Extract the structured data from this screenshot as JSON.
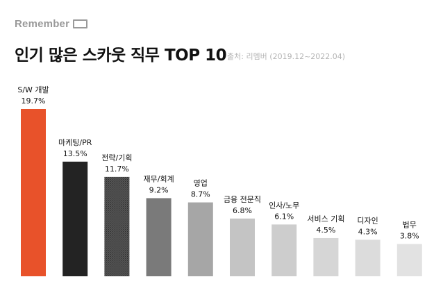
{
  "brand": {
    "name": "Remember"
  },
  "header": {
    "title": "인기 많은 스카웃 직무 TOP 10",
    "source": "출처: 리멤버 (2019.12~2022.04)"
  },
  "chart_data": {
    "type": "bar",
    "title": "인기 많은 스카웃 직무 TOP 10",
    "unit": "%",
    "categories": [
      "S/W 개발",
      "마케팅/PR",
      "전략/기획",
      "재무/회계",
      "영업",
      "금융 전문직",
      "인사/노무",
      "서비스 기획",
      "디자인",
      "법무"
    ],
    "values": [
      19.7,
      13.5,
      11.7,
      9.2,
      8.7,
      6.8,
      6.1,
      4.5,
      4.3,
      3.8
    ],
    "value_labels": [
      "19.7%",
      "13.5%",
      "11.7%",
      "9.2%",
      "8.7%",
      "6.8%",
      "6.1%",
      "4.5%",
      "4.3%",
      "3.8%"
    ],
    "colors": [
      "#e8522a",
      "#232323",
      "#4a4a4a",
      "#7a7a7a",
      "#a6a6a6",
      "#c4c4c4",
      "#cdcdcd",
      "#d6d6d6",
      "#dcdcdc",
      "#e2e2e2"
    ],
    "patterned_index": 2,
    "ylim": [
      0,
      19.7
    ],
    "grid": false,
    "legend": "none"
  }
}
